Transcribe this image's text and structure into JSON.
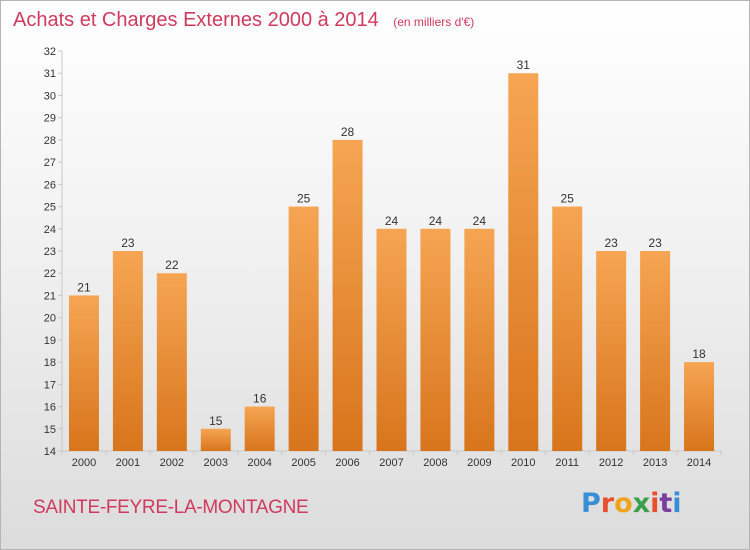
{
  "chart_data": {
    "type": "bar",
    "title": "Achats et Charges Externes 2000 à 2014",
    "subtitle": "(en milliers d'€)",
    "categories": [
      "2000",
      "2001",
      "2002",
      "2003",
      "2004",
      "2005",
      "2006",
      "2007",
      "2008",
      "2009",
      "2010",
      "2011",
      "2012",
      "2013",
      "2014"
    ],
    "values": [
      21,
      23,
      22,
      15,
      16,
      25,
      28,
      24,
      24,
      24,
      31,
      25,
      23,
      23,
      18
    ],
    "ylim": [
      14,
      32
    ],
    "yticks": [
      14,
      15,
      16,
      17,
      18,
      19,
      20,
      21,
      22,
      23,
      24,
      25,
      26,
      27,
      28,
      29,
      30,
      31,
      32
    ],
    "grid": false,
    "data_labels": true,
    "colors": {
      "bar_light": "#f6a553",
      "bar_dark": "#d8751c",
      "title": "#d03a5c",
      "axis": "#c8c8c8",
      "tick_label": "#333333"
    }
  },
  "footer": {
    "city": "SAINTE-FEYRE-LA-MONTAGNE",
    "brand": "Proxiti",
    "brand_colors": [
      "#3a8ed8",
      "#e94f2e",
      "#f0a41c",
      "#3aa04a",
      "#e94f2e",
      "#7b3fa0",
      "#3a8ed8"
    ]
  }
}
